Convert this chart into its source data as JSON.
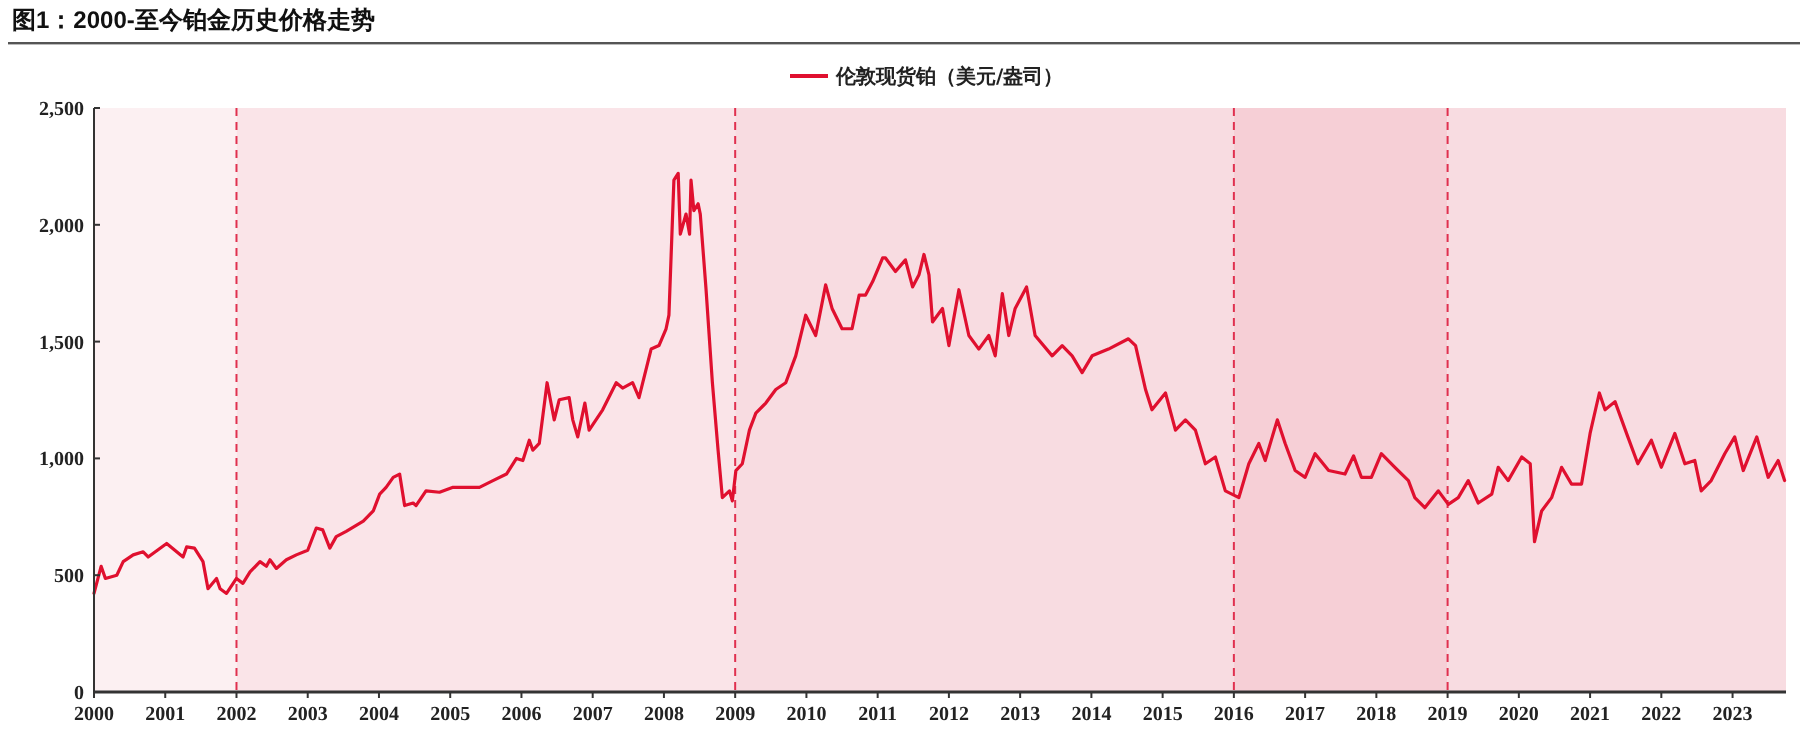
{
  "chart_data": {
    "type": "line",
    "title": "图1：2000-至今铂金历史价格走势",
    "legend": "top",
    "line_style": "solid",
    "xlim": [
      2000,
      2023.75
    ],
    "xticks": [
      2000,
      2001,
      2002,
      2003,
      2004,
      2005,
      2006,
      2007,
      2008,
      2009,
      2010,
      2011,
      2012,
      2013,
      2014,
      2015,
      2016,
      2017,
      2018,
      2019,
      2020,
      2021,
      2022,
      2023
    ],
    "ylim": [
      0,
      2500
    ],
    "yticks": [
      0,
      500,
      {
        "value": 1000,
        "label": "1,000"
      },
      {
        "value": 1500,
        "label": "1,500"
      },
      {
        "value": 2000,
        "label": "2,000"
      },
      {
        "value": 2500,
        "label": "2,500"
      }
    ],
    "bands": [
      {
        "axis": "x",
        "from": 2000,
        "to": 2002,
        "color": "#fcf0f2"
      },
      {
        "axis": "x",
        "from": 2002,
        "to": 2009,
        "color": "#fae4e8"
      },
      {
        "axis": "x",
        "from": 2009,
        "to": 2016,
        "color": "#f8dce1"
      },
      {
        "axis": "x",
        "from": 2016,
        "to": 2019,
        "color": "#f6cfd6"
      },
      {
        "axis": "x",
        "from": 2019,
        "to": 2023.75,
        "color": "#f8dce1"
      }
    ],
    "ref_lines": [
      {
        "axis": "x",
        "value": 2002,
        "color": "#e0304f",
        "line_style": "dashed"
      },
      {
        "axis": "x",
        "value": 2009,
        "color": "#e0304f",
        "line_style": "dashed"
      },
      {
        "axis": "x",
        "value": 2016,
        "color": "#e0304f",
        "line_style": "dashed"
      },
      {
        "axis": "x",
        "value": 2019,
        "color": "#e0304f",
        "line_style": "dashed"
      }
    ],
    "series": [
      {
        "name": "伦敦现货铂（美元/盎司）",
        "color": "#e0102f",
        "x": [
          2000,
          2000.1,
          2000.16,
          2000.32,
          2000.41,
          2000.55,
          2000.69,
          2000.76,
          2001.02,
          2001.25,
          2001.3,
          2001.41,
          2001.53,
          2001.6,
          2001.72,
          2001.77,
          2001.86,
          2002,
          2002.09,
          2002.19,
          2002.33,
          2002.42,
          2002.47,
          2002.56,
          2002.7,
          2002.84,
          2003,
          2003.12,
          2003.21,
          2003.31,
          2003.4,
          2003.54,
          2003.78,
          2003.92,
          2004.01,
          2004.1,
          2004.2,
          2004.29,
          2004.36,
          2004.48,
          2004.52,
          2004.66,
          2004.85,
          2005.04,
          2005.41,
          2005.6,
          2005.79,
          2005.93,
          2006.02,
          2006.11,
          2006.16,
          2006.25,
          2006.36,
          2006.46,
          2006.53,
          2006.67,
          2006.72,
          2006.79,
          2006.89,
          2006.95,
          2007.14,
          2007.33,
          2007.42,
          2007.56,
          2007.65,
          2007.82,
          2007.93,
          2008.03,
          2008.07,
          2008.14,
          2008.2,
          2008.23,
          2008.31,
          2008.36,
          2008.38,
          2008.42,
          2008.48,
          2008.51,
          2008.59,
          2008.68,
          2008.76,
          2008.82,
          2008.92,
          2008.96,
          2009.01,
          2009.1,
          2009.2,
          2009.29,
          2009.43,
          2009.57,
          2009.71,
          2009.85,
          2009.99,
          2010.13,
          2010.27,
          2010.36,
          2010.5,
          2010.64,
          2010.74,
          2010.83,
          2010.93,
          2011.07,
          2011.11,
          2011.25,
          2011.39,
          2011.49,
          2011.58,
          2011.65,
          2011.72,
          2011.77,
          2011.91,
          2012,
          2012.14,
          2012.28,
          2012.42,
          2012.56,
          2012.65,
          2012.75,
          2012.84,
          2012.93,
          2013.09,
          2013.21,
          2013.45,
          2013.59,
          2013.73,
          2013.87,
          2014.01,
          2014.24,
          2014.52,
          2014.62,
          2014.76,
          2014.85,
          2015.04,
          2015.18,
          2015.32,
          2015.46,
          2015.6,
          2015.74,
          2015.88,
          2016.07,
          2016.21,
          2016.35,
          2016.44,
          2016.61,
          2016.72,
          2016.86,
          2017,
          2017.14,
          2017.33,
          2017.56,
          2017.68,
          2017.79,
          2017.93,
          2018.07,
          2018.26,
          2018.45,
          2018.54,
          2018.68,
          2018.87,
          2019.01,
          2019.15,
          2019.29,
          2019.43,
          2019.62,
          2019.71,
          2019.85,
          2020.04,
          2020.16,
          2020.22,
          2020.32,
          2020.46,
          2020.6,
          2020.74,
          2020.88,
          2021,
          2021.13,
          2021.21,
          2021.35,
          2021.53,
          2021.67,
          2021.86,
          2022,
          2022.19,
          2022.33,
          2022.47,
          2022.56,
          2022.7,
          2022.89,
          2023.03,
          2023.15,
          2023.34,
          2023.5,
          2023.64,
          2023.73
        ],
        "values": [
          422,
          538,
          486,
          500,
          558,
          587,
          600,
          578,
          636,
          578,
          621,
          616,
          558,
          442,
          486,
          442,
          422,
          486,
          465,
          514,
          558,
          538,
          566,
          529,
          566,
          587,
          607,
          702,
          694,
          616,
          665,
          688,
          731,
          775,
          847,
          876,
          919,
          933,
          798,
          809,
          798,
          861,
          855,
          876,
          876,
          905,
          933,
          1000,
          991,
          1078,
          1035,
          1064,
          1324,
          1165,
          1251,
          1260,
          1165,
          1092,
          1237,
          1121,
          1208,
          1324,
          1301,
          1324,
          1260,
          1468,
          1483,
          1555,
          1613,
          2191,
          2220,
          1960,
          2046,
          1960,
          2191,
          2061,
          2090,
          2046,
          1728,
          1324,
          1035,
          832,
          861,
          818,
          948,
          977,
          1121,
          1194,
          1237,
          1295,
          1324,
          1439,
          1613,
          1526,
          1743,
          1642,
          1555,
          1555,
          1699,
          1699,
          1757,
          1858,
          1858,
          1800,
          1850,
          1734,
          1786,
          1873,
          1786,
          1584,
          1642,
          1483,
          1722,
          1526,
          1468,
          1526,
          1439,
          1705,
          1526,
          1642,
          1734,
          1526,
          1439,
          1483,
          1439,
          1367,
          1439,
          1468,
          1512,
          1483,
          1295,
          1208,
          1280,
          1121,
          1165,
          1121,
          977,
          1006,
          861,
          832,
          977,
          1064,
          991,
          1165,
          1064,
          948,
          919,
          1020,
          948,
          933,
          1011,
          919,
          919,
          1020,
          962,
          905,
          832,
          789,
          861,
          803,
          832,
          905,
          809,
          847,
          962,
          905,
          1006,
          977,
          644,
          775,
          832,
          962,
          890,
          890,
          1107,
          1280,
          1208,
          1243,
          1092,
          977,
          1078,
          962,
          1107,
          977,
          991,
          861,
          905,
          1020,
          1092,
          948,
          1092,
          919,
          991,
          905
        ]
      }
    ]
  }
}
